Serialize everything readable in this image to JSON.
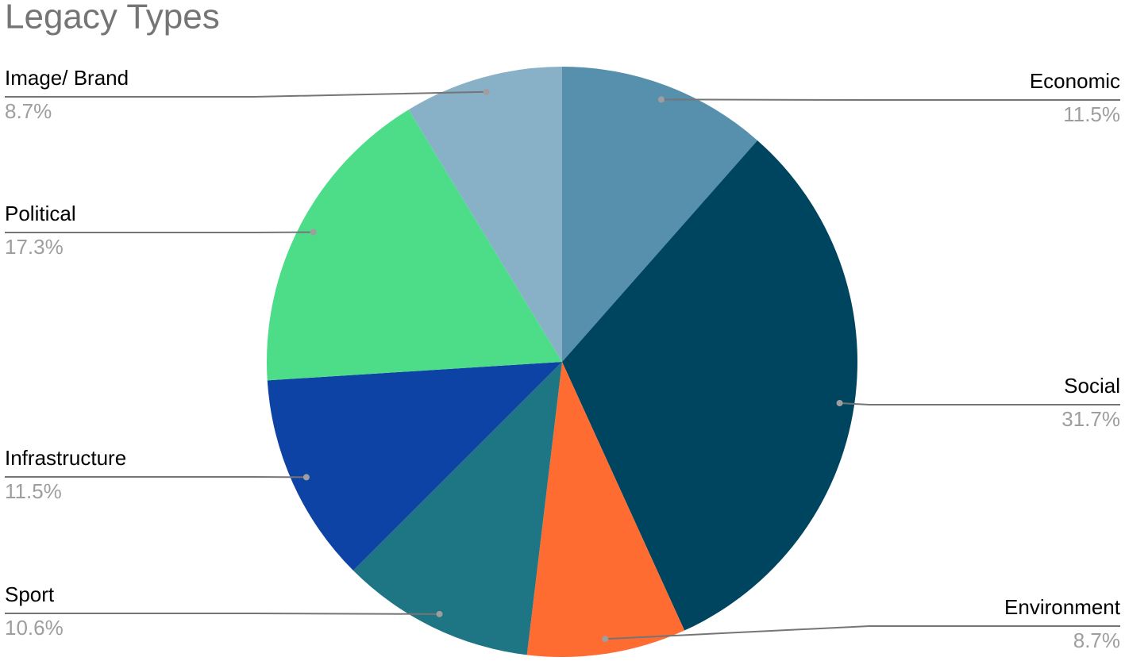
{
  "chart_data": {
    "type": "pie",
    "title": "Legacy Types",
    "categories": [
      "Economic",
      "Social",
      "Environment",
      "Sport",
      "Infrastructure",
      "Political",
      "Image/ Brand"
    ],
    "values": [
      11.5,
      31.7,
      8.7,
      10.6,
      11.5,
      17.3,
      8.7
    ],
    "value_labels": [
      "11.5%",
      "31.7%",
      "8.7%",
      "10.6%",
      "11.5%",
      "17.3%",
      "8.7%"
    ],
    "colors": [
      "#5790ad",
      "#004560",
      "#fe6c32",
      "#1e7584",
      "#0e43a6",
      "#4ddd89",
      "#88b1c7"
    ]
  }
}
